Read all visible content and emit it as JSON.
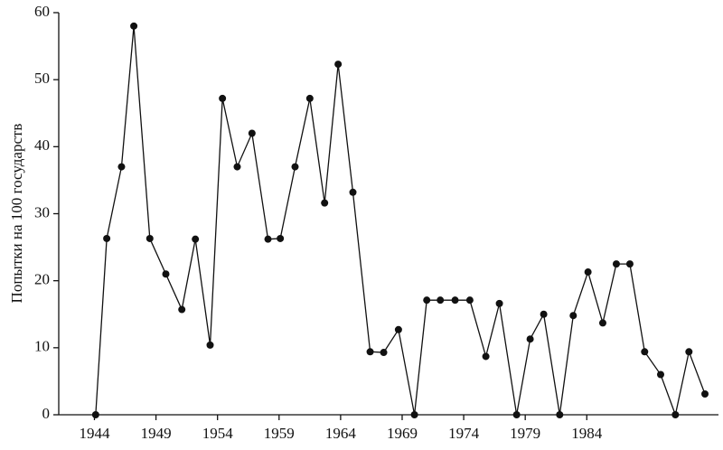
{
  "chart_data": {
    "type": "line",
    "y_label": "Попытки на 100 государств",
    "x": [
      1944.1,
      1945.0,
      1946.2,
      1947.2,
      1948.5,
      1949.8,
      1951.1,
      1952.2,
      1953.4,
      1954.4,
      1955.6,
      1956.8,
      1958.1,
      1959.1,
      1960.3,
      1961.5,
      1962.7,
      1963.8,
      1965.0,
      1966.4,
      1967.5,
      1968.7,
      1970.0,
      1971.0,
      1972.1,
      1973.3,
      1974.5,
      1975.8,
      1976.9,
      1978.3,
      1979.4,
      1980.5,
      1981.8,
      1982.9,
      1984.1,
      1985.3,
      1986.4,
      1987.5,
      1988.7,
      1990.0,
      1991.2,
      1992.3,
      1993.6
    ],
    "values": [
      0,
      26.3,
      37,
      58,
      26.3,
      21,
      15.7,
      26.2,
      10.4,
      47.2,
      37,
      42,
      26.2,
      26.3,
      37,
      47.2,
      31.6,
      52.3,
      33.2,
      9.4,
      9.3,
      12.7,
      0,
      17.1,
      17.1,
      17.1,
      17.1,
      8.7,
      16.6,
      0,
      11.3,
      15,
      0,
      14.8,
      21.3,
      13.7,
      22.5,
      22.5,
      9.4,
      6,
      0,
      9.4,
      3.1
    ],
    "color": "#111111",
    "xlim": [
      1941.1,
      1994.7
    ],
    "xticks": [
      1944,
      1949,
      1954,
      1959,
      1964,
      1969,
      1974,
      1979,
      1984
    ],
    "ylim": [
      0,
      60
    ],
    "yticks": [
      0,
      10,
      20,
      30,
      40,
      50,
      60
    ]
  }
}
